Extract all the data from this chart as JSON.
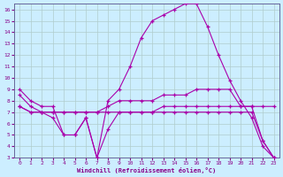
{
  "bg_color": "#cceeff",
  "grid_color": "#b0cccc",
  "line_color": "#aa00aa",
  "xlim": [
    -0.5,
    23.5
  ],
  "ylim": [
    3,
    16.5
  ],
  "xticks": [
    0,
    1,
    2,
    3,
    4,
    5,
    6,
    7,
    8,
    9,
    10,
    11,
    12,
    13,
    14,
    15,
    16,
    17,
    18,
    19,
    20,
    21,
    22,
    23
  ],
  "yticks": [
    3,
    4,
    5,
    6,
    7,
    8,
    9,
    10,
    11,
    12,
    13,
    14,
    15,
    16
  ],
  "xlabel": "Windchill (Refroidissement éolien,°C)",
  "series": [
    {
      "x": [
        0,
        1,
        2,
        3,
        4,
        5,
        6,
        7,
        8,
        9,
        10,
        11,
        12,
        13,
        14,
        15,
        16,
        17,
        18,
        19,
        20,
        21,
        22,
        23
      ],
      "y": [
        9.0,
        8.0,
        7.5,
        7.5,
        5.0,
        5.0,
        6.5,
        3.0,
        8.0,
        9.0,
        11.0,
        13.5,
        15.0,
        15.5,
        16.0,
        16.5,
        16.5,
        14.5,
        12.0,
        9.8,
        8.0,
        6.5,
        4.0,
        3.0
      ]
    },
    {
      "x": [
        0,
        1,
        2,
        3,
        4,
        5,
        6,
        7,
        8,
        9,
        10,
        11,
        12,
        13,
        14,
        15,
        16,
        17,
        18,
        19,
        20,
        21,
        22,
        23
      ],
      "y": [
        8.5,
        7.5,
        7.0,
        7.0,
        7.0,
        7.0,
        7.0,
        7.0,
        7.5,
        8.0,
        8.0,
        8.0,
        8.0,
        8.5,
        8.5,
        8.5,
        9.0,
        9.0,
        9.0,
        9.0,
        7.5,
        7.5,
        7.5,
        7.5
      ]
    },
    {
      "x": [
        0,
        1,
        2,
        3,
        4,
        5,
        6,
        7,
        8,
        9,
        10,
        11,
        12,
        13,
        14,
        15,
        16,
        17,
        18,
        19,
        20,
        21,
        22,
        23
      ],
      "y": [
        7.5,
        7.0,
        7.0,
        6.5,
        5.0,
        5.0,
        6.5,
        3.0,
        5.5,
        7.0,
        7.0,
        7.0,
        7.0,
        7.5,
        7.5,
        7.5,
        7.5,
        7.5,
        7.5,
        7.5,
        7.5,
        7.5,
        4.5,
        3.0
      ]
    },
    {
      "x": [
        0,
        1,
        2,
        3,
        4,
        5,
        6,
        7,
        8,
        9,
        10,
        11,
        12,
        13,
        14,
        15,
        16,
        17,
        18,
        19,
        20,
        21,
        22,
        23
      ],
      "y": [
        7.5,
        7.0,
        7.0,
        7.0,
        7.0,
        7.0,
        7.0,
        7.0,
        7.0,
        7.0,
        7.0,
        7.0,
        7.0,
        7.0,
        7.0,
        7.0,
        7.0,
        7.0,
        7.0,
        7.0,
        7.0,
        7.0,
        4.5,
        3.0
      ]
    }
  ]
}
